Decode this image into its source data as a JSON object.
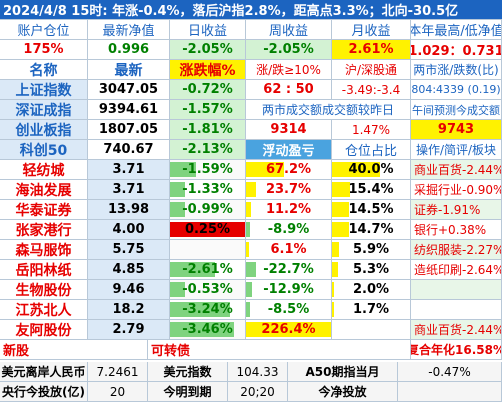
{
  "colors": {
    "title_bg": "#1c64c0",
    "title_text": "#ffffff",
    "header_text": "#1c64c0",
    "red": "#e60000",
    "green": "#008000",
    "stripe_red": "#ffd9d9",
    "stripe_green": "#d3f2d3",
    "bar_red": "#f7a3a3",
    "bar_green": "#7fd37f",
    "cyan": "#bde6f5",
    "yellow": "#fff200",
    "light_blue": "#dbe9f7"
  },
  "title": "2024/4/8   15时: 年涨-0.4%，落后沪指2.8%，距高点3.3%；北向-30.5亿",
  "account": {
    "headers": [
      "账户仓位",
      "最新净值",
      "日收益",
      "周收益",
      "月收益",
      "本年最高/低净值"
    ],
    "values": [
      "175%",
      "0.996",
      "-2.05%",
      "-2.05%",
      "2.61%",
      "1.029：0.731"
    ]
  },
  "index_headers": [
    "名称",
    "最新",
    "涨跌幅%",
    "涨/跌≥10%",
    "沪/深股通",
    "两市涨/跌数(比)"
  ],
  "indices": [
    {
      "name": "上证指数",
      "price": "3047.05",
      "change": "-0.72%",
      "c3": "62 : 50",
      "c4": "-3.49:-3.4",
      "c5": "804:4339 (0.19)"
    },
    {
      "name": "深证成指",
      "price": "9394.61",
      "change": "-1.57%",
      "c3": "两市成交额成交额较昨日",
      "c4": "",
      "c5": "午间预测今成交额"
    },
    {
      "name": "创业板指",
      "price": "1807.05",
      "change": "-1.81%",
      "c3": "9314",
      "c4": "1.47%",
      "c5": "9743"
    },
    {
      "name": "科创50",
      "price": "740.67",
      "change": "-2.13%",
      "c3": "浮动盈亏",
      "c4": "仓位占比",
      "c5": "操作/简评/板块"
    }
  ],
  "stocks": [
    {
      "name": "轻纺城",
      "price": "3.71",
      "change": "-1.59%",
      "pnl": "67.2%",
      "weight": "40.0%",
      "note": "商业百货-2.44%",
      "change_level": 0.35,
      "pnl_level": 0.45,
      "weight_level": 0.62
    },
    {
      "name": "海油发展",
      "price": "3.71",
      "change": "-1.33%",
      "pnl": "23.7%",
      "weight": "15.4%",
      "note": "采掘行业-0.90%",
      "change_level": 0.2,
      "pnl_level": 0.12,
      "weight_level": 0.23
    },
    {
      "name": "华泰证券",
      "price": "13.98",
      "change": "-0.99%",
      "pnl": "11.2%",
      "weight": "14.5%",
      "note": "证券-1.91%",
      "change_level": 0.2,
      "pnl_level": 0.06,
      "weight_level": 0.22
    },
    {
      "name": "张家港行",
      "price": "4.00",
      "change": "0.25%",
      "pnl": "-8.9%",
      "weight": "14.7%",
      "note": "银行+0.38%",
      "change_level": 1.0,
      "pnl_level": 0.05,
      "weight_level": 0.22
    },
    {
      "name": "森马服饰",
      "price": "5.75",
      "change": "",
      "pnl": "6.1%",
      "weight": "5.9%",
      "note": "纺织服装-2.27%",
      "change_level": 0,
      "pnl_level": 0.03,
      "weight_level": 0.09
    },
    {
      "name": "岳阳林纸",
      "price": "4.85",
      "change": "-2.61%",
      "pnl": "-22.7%",
      "weight": "5.3%",
      "note": "造纸印刷-2.64%",
      "change_level": 0.6,
      "pnl_level": 0.12,
      "weight_level": 0.08
    },
    {
      "name": "生物股份",
      "price": "9.46",
      "change": "-0.53%",
      "pnl": "-12.9%",
      "weight": "2.0%",
      "note": "",
      "change_level": 0.2,
      "pnl_level": 0.07,
      "weight_level": 0.03
    },
    {
      "name": "江苏北人",
      "price": "18.2",
      "change": "-3.24%",
      "pnl": "-8.5%",
      "weight": "1.7%",
      "note": "",
      "change_level": 0.8,
      "pnl_level": 0.05,
      "weight_level": 0.02
    },
    {
      "name": "友阿股份",
      "price": "2.79",
      "change": "-3.46%",
      "pnl": "226.4%",
      "weight": "",
      "note": "商业百货-2.44%",
      "change_level": 0.85,
      "pnl_level": 1.0,
      "weight_level": 0
    }
  ],
  "new_stock": {
    "label": "新股",
    "sublabel": "可转债",
    "annual": "复合年化16.58%"
  },
  "footer": [
    [
      "美元离岸人民币",
      "7.2461",
      "美元指数",
      "104.33",
      "A50期指当月",
      "-0.47%"
    ],
    [
      "央行今投放(亿)",
      "20",
      "今明到期",
      "20;20",
      "今净投放",
      ""
    ]
  ]
}
